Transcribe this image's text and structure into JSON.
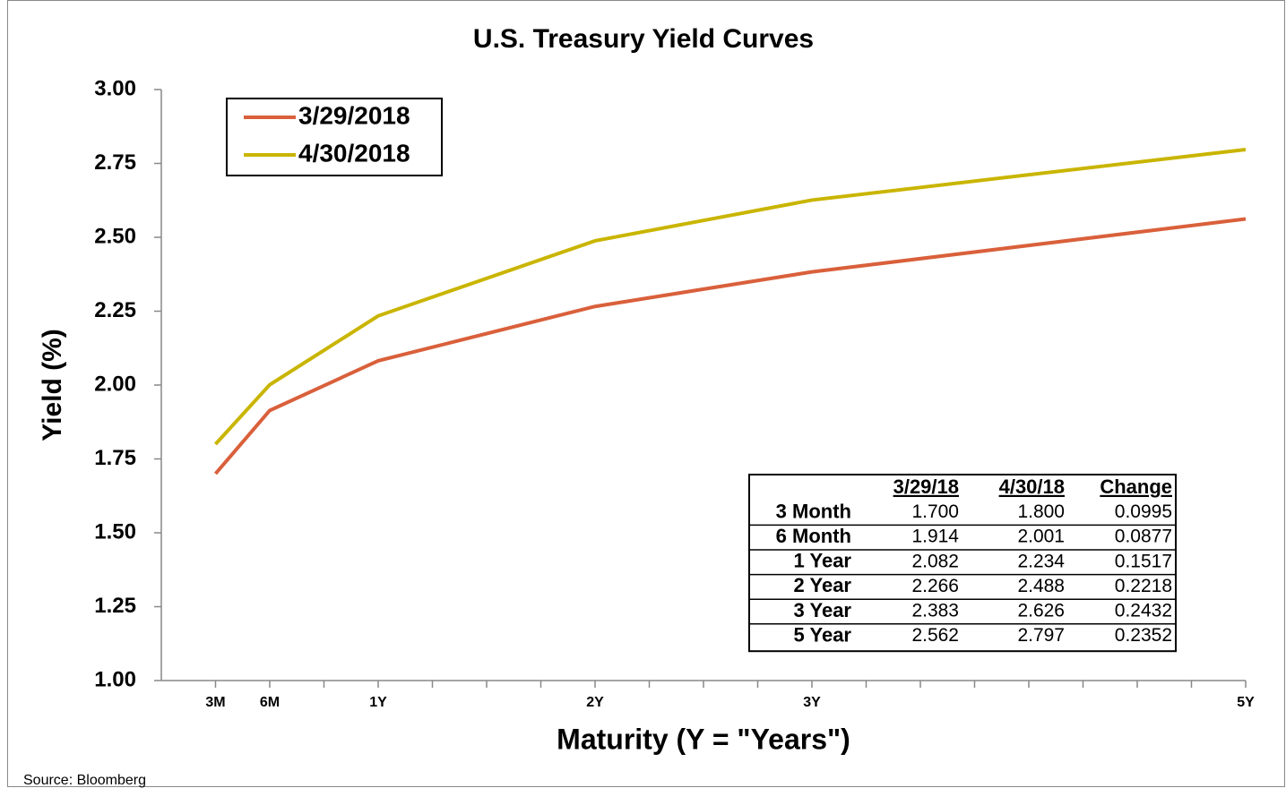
{
  "chart_data": {
    "type": "line",
    "title": "U.S. Treasury Yield Curves",
    "x_label": "Maturity (Y = \"Years\")",
    "y_label": "Yield (%)",
    "source": "Source: Bloomberg",
    "x": [
      0.25,
      0.5,
      1,
      2,
      3,
      5
    ],
    "series": [
      {
        "name": "3/29/2018",
        "color": "#d9603b",
        "values": [
          1.7,
          1.914,
          2.082,
          2.266,
          2.383,
          2.562
        ]
      },
      {
        "name": "4/30/2018",
        "color": "#c9b500",
        "values": [
          1.8,
          2.001,
          2.234,
          2.488,
          2.626,
          2.797
        ]
      }
    ],
    "xlim": [
      0,
      5
    ],
    "xticks": [
      {
        "value": 0.25,
        "label": "3M"
      },
      {
        "value": 0.5,
        "label": "6M"
      },
      {
        "value": 1,
        "label": "1Y"
      },
      {
        "value": 2,
        "label": "2Y"
      },
      {
        "value": 3,
        "label": "3Y"
      },
      {
        "value": 5,
        "label": "5Y"
      }
    ],
    "xminor_ticks": [
      0.75,
      1.25,
      1.5,
      1.75,
      2.25,
      2.5,
      2.75,
      3.25,
      3.5,
      3.75,
      4,
      4.25,
      4.5,
      4.75
    ],
    "ylim": [
      1,
      3
    ],
    "yticks": [
      {
        "value": 1,
        "label": "1.00"
      },
      {
        "value": 1.25,
        "label": "1.25"
      },
      {
        "value": 1.5,
        "label": "1.50"
      },
      {
        "value": 1.75,
        "label": "1.75"
      },
      {
        "value": 2,
        "label": "2.00"
      },
      {
        "value": 2.25,
        "label": "2.25"
      },
      {
        "value": 2.5,
        "label": "2.50"
      },
      {
        "value": 2.75,
        "label": "2.75"
      },
      {
        "value": 3,
        "label": "3.00"
      }
    ],
    "legend": "upper left",
    "table": {
      "columns": [
        "3/29/18",
        "4/30/18",
        "Change"
      ],
      "rows": [
        {
          "label": "3 Month",
          "cells": [
            "1.700",
            "1.800",
            "0.0995"
          ]
        },
        {
          "label": "6 Month",
          "cells": [
            "1.914",
            "2.001",
            "0.0877"
          ]
        },
        {
          "label": "1 Year",
          "cells": [
            "2.082",
            "2.234",
            "0.1517"
          ]
        },
        {
          "label": "2 Year",
          "cells": [
            "2.266",
            "2.488",
            "0.2218"
          ]
        },
        {
          "label": "3 Year",
          "cells": [
            "2.383",
            "2.626",
            "0.2432"
          ]
        },
        {
          "label": "5 Year",
          "cells": [
            "2.562",
            "2.797",
            "0.2352"
          ]
        }
      ]
    }
  }
}
